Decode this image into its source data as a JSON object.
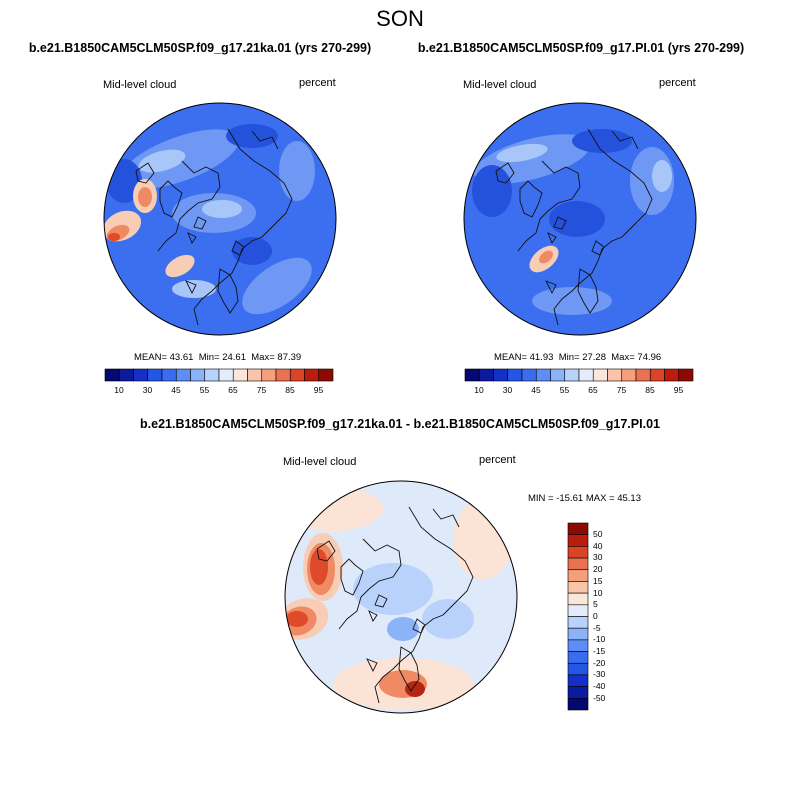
{
  "figure": {
    "title": "SON"
  },
  "panels": {
    "left": {
      "title": "b.e21.B1850CAM5CLM50SP.f09_g17.21ka.01 (yrs 270-299)",
      "variable": "Mid-level cloud",
      "units": "percent",
      "mean_label": "MEAN=",
      "mean": "43.61",
      "min_label": "Min=",
      "min": "24.61",
      "max_label": "Max=",
      "max": "87.39"
    },
    "right": {
      "title": "b.e21.B1850CAM5CLM50SP.f09_g17.PI.01 (yrs 270-299)",
      "variable": "Mid-level cloud",
      "units": "percent",
      "mean_label": "MEAN=",
      "mean": "41.93",
      "min_label": "Min=",
      "min": "27.28",
      "max_label": "Max=",
      "max": "74.96"
    },
    "diff": {
      "title": "b.e21.B1850CAM5CLM50SP.f09_g17.21ka.01 - b.e21.B1850CAM5CLM50SP.f09_g17.PI.01",
      "variable": "Mid-level cloud",
      "units": "percent",
      "minmax": "MIN = -15.61 MAX =  45.13"
    }
  },
  "colorbars": {
    "abs": {
      "tick_labels": [
        "10",
        "30",
        "45",
        "55",
        "65",
        "75",
        "85",
        "95"
      ],
      "colors": [
        "#05086e",
        "#0c1a9e",
        "#1530c8",
        "#2456e6",
        "#3a6cf0",
        "#5c8ef5",
        "#8cb2f8",
        "#b9d2fb",
        "#e2ecfb",
        "#fbe6da",
        "#f9c4a8",
        "#f59f7c",
        "#ec7152",
        "#dc4426",
        "#bb1c0c",
        "#8c0a00"
      ]
    },
    "diff": {
      "tick_labels": [
        "50",
        "40",
        "30",
        "20",
        "15",
        "10",
        "5",
        "0",
        "-5",
        "-10",
        "-15",
        "-20",
        "-30",
        "-40",
        "-50"
      ],
      "colors": [
        "#8c0a00",
        "#bb1c0c",
        "#dc4426",
        "#ec7152",
        "#f59f7c",
        "#f9c4a8",
        "#fbe6da",
        "#e2ecfb",
        "#b9d2fb",
        "#8cb2f8",
        "#5c8ef5",
        "#3a6cf0",
        "#2456e6",
        "#1530c8",
        "#0c1a9e",
        "#05086e"
      ]
    }
  },
  "palette": {
    "blue_base": "#3c6ef0",
    "blue_light": "#6f98f4",
    "blue_pale": "#a9c6f9",
    "blue_dark": "#2452dc",
    "warm_pale": "#f7cdb6",
    "warm_mid": "#ef8a64",
    "warm_strong": "#de4a2a",
    "warm_dark": "#b42612",
    "diff_base": "#deeaf9",
    "diff_pale_blue": "#b9d2fb",
    "diff_mid_blue": "#8cb2f8",
    "diff_peach": "#fbe3d5",
    "coast": "#111111"
  }
}
